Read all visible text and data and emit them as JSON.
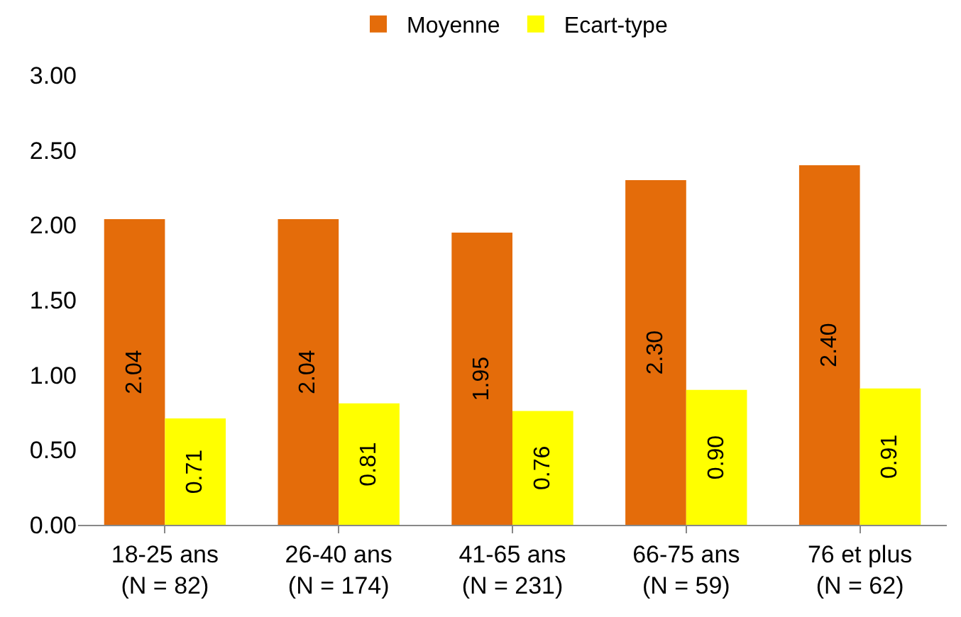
{
  "chart_data": {
    "type": "bar",
    "categories": [
      "18-25 ans\n(N = 82)",
      "26-40 ans\n(N = 174)",
      "41-65 ans\n(N = 231)",
      "66-75 ans\n(N = 59)",
      "76 et plus\n(N = 62)"
    ],
    "series": [
      {
        "name": "Moyenne",
        "color": "#e46c0a",
        "values": [
          2.04,
          2.04,
          1.95,
          2.3,
          2.4
        ],
        "value_labels": [
          "2.04",
          "2.04",
          "1.95",
          "2.30",
          "2.40"
        ]
      },
      {
        "name": "Ecart-type",
        "color": "#ffff00",
        "values": [
          0.71,
          0.81,
          0.76,
          0.9,
          0.91
        ],
        "value_labels": [
          "0.71",
          "0.81",
          "0.76",
          "0.90",
          "0.91"
        ]
      }
    ],
    "ylim": [
      0,
      3
    ],
    "yticks": [
      {
        "value": 0,
        "label": "0.00"
      },
      {
        "value": 0.5,
        "label": "0.50"
      },
      {
        "value": 1,
        "label": "1.00"
      },
      {
        "value": 1.5,
        "label": "1.50"
      },
      {
        "value": 2,
        "label": "2.00"
      },
      {
        "value": 2.5,
        "label": "2.50"
      },
      {
        "value": 3,
        "label": "3.00"
      }
    ],
    "grid": false,
    "legend": "top"
  }
}
